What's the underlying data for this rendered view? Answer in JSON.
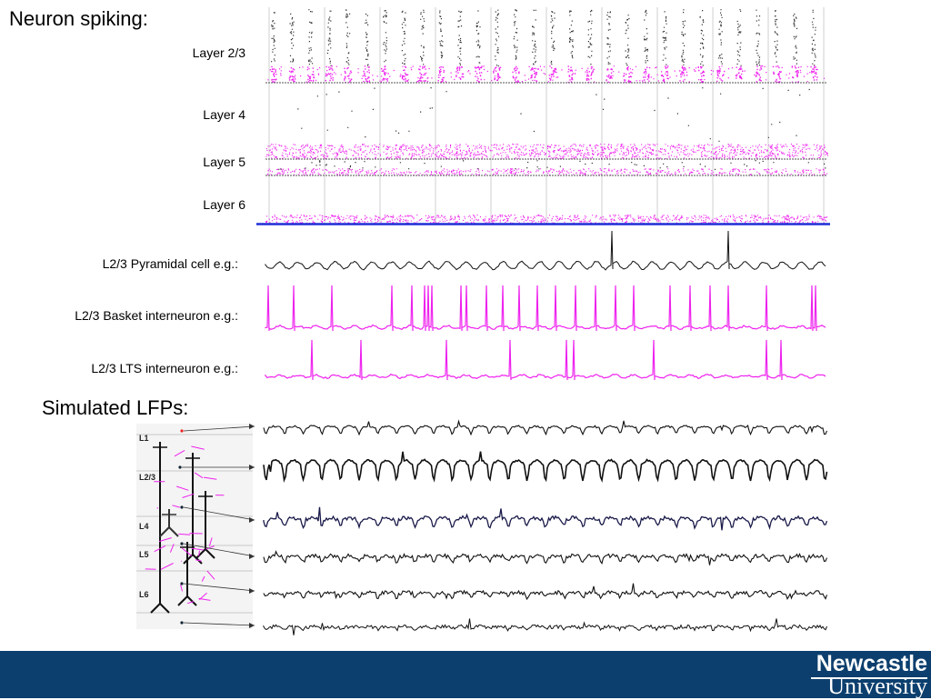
{
  "titles": {
    "spiking": "Neuron spiking:",
    "lfps": "Simulated LFPs:"
  },
  "raster_layers": [
    {
      "label": "Layer 2/3"
    },
    {
      "label": "Layer 4"
    },
    {
      "label": "Layer 5"
    },
    {
      "label": "Layer 6"
    }
  ],
  "traces": [
    {
      "label": "L2/3 Pyramidal cell e.g.:",
      "color": "#111111"
    },
    {
      "label": "L2/3 Basket interneuron e.g.:",
      "color": "#ee22ee"
    },
    {
      "label": "L2/3 LTS interneuron e.g.:",
      "color": "#ee22ee"
    }
  ],
  "schematic": {
    "layers": [
      "L1",
      "L2/3",
      "L4",
      "L5",
      "L6"
    ]
  },
  "lfp_traces": 6,
  "colors": {
    "spike_magenta": "#ee22ee",
    "separator_blue": "#1f2fd6",
    "footer": "#0c3f6e"
  },
  "logo": {
    "line1": "Newcastle",
    "line2": "University"
  }
}
